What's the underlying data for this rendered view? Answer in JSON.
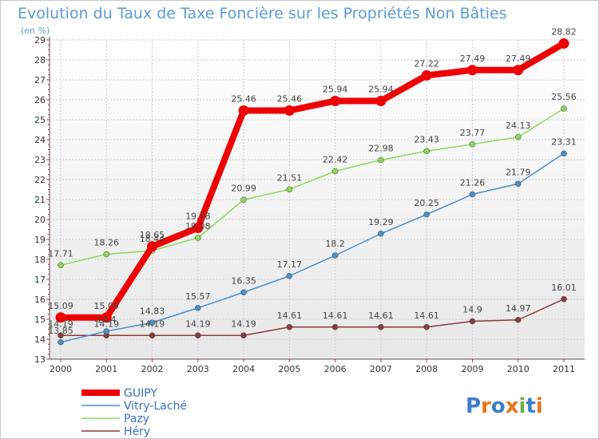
{
  "chart_data": {
    "type": "line",
    "title": "Evolution du Taux de Taxe Foncière sur les Propriétés Non Bâties",
    "subtitle": "(en %)",
    "xlabel": "",
    "ylabel": "",
    "categories": [
      "2000",
      "2001",
      "2002",
      "2003",
      "2004",
      "2005",
      "2006",
      "2007",
      "2008",
      "2009",
      "2010",
      "2011"
    ],
    "ylim": [
      13,
      29
    ],
    "yticks": [
      "13",
      "14",
      "15",
      "16",
      "17",
      "18",
      "19",
      "20",
      "21",
      "22",
      "23",
      "24",
      "25",
      "26",
      "27",
      "28",
      "29"
    ],
    "grid": true,
    "legend_position": "bottom-left",
    "series": [
      {
        "name": "Héry",
        "color": "#8b3a3a",
        "values": [
          14.19,
          14.19,
          14.19,
          14.19,
          14.19,
          14.61,
          14.61,
          14.61,
          14.61,
          14.9,
          14.97,
          16.01
        ],
        "labels": [
          "14.19",
          "14.19",
          "14.19",
          "14.19",
          "14.19",
          "14.61",
          "14.61",
          "14.61",
          "14.61",
          "14.9",
          "14.97",
          "16.01"
        ]
      },
      {
        "name": "Vitry-Laché",
        "color": "#4a8ecb",
        "values": [
          13.85,
          14.4,
          14.83,
          15.57,
          16.35,
          17.17,
          18.2,
          19.29,
          20.25,
          21.26,
          21.79,
          23.31
        ],
        "labels": [
          "13.85",
          "14.4",
          "14.83",
          "15.57",
          "16.35",
          "17.17",
          "18.2",
          "19.29",
          "20.25",
          "21.26",
          "21.79",
          "23.31"
        ]
      },
      {
        "name": "Pazy",
        "color": "#8ed65a",
        "values": [
          17.71,
          18.26,
          18.44,
          19.08,
          20.99,
          21.51,
          22.42,
          22.98,
          23.43,
          23.77,
          24.13,
          25.56
        ],
        "labels": [
          "17.71",
          "18.26",
          "18.44",
          "19.08",
          "20.99",
          "21.51",
          "22.42",
          "22.98",
          "23.43",
          "23.77",
          "24.13",
          "25.56"
        ]
      },
      {
        "name": "GUIPY",
        "color": "#ee0000",
        "values": [
          15.09,
          15.09,
          18.65,
          19.58,
          25.46,
          25.46,
          25.94,
          25.94,
          27.22,
          27.49,
          27.49,
          28.82
        ],
        "labels": [
          "15.09",
          "15.09",
          "18.65",
          "19.58",
          "25.46",
          "25.46",
          "25.94",
          "25.94",
          "27.22",
          "27.49",
          "27.49",
          "28.82"
        ]
      }
    ],
    "legend": [
      "GUIPY",
      "Vitry-Laché",
      "Pazy",
      "Héry"
    ]
  },
  "logo": {
    "text": "Proxiti",
    "letters": [
      "P",
      "r",
      "o",
      "x",
      "i",
      "t",
      "i"
    ],
    "colors": [
      "#3b7fc8",
      "#e8751a",
      "#3b7fc8",
      "#e8751a",
      "#6ab04c",
      "#3b7fc8",
      "#e8751a"
    ]
  }
}
